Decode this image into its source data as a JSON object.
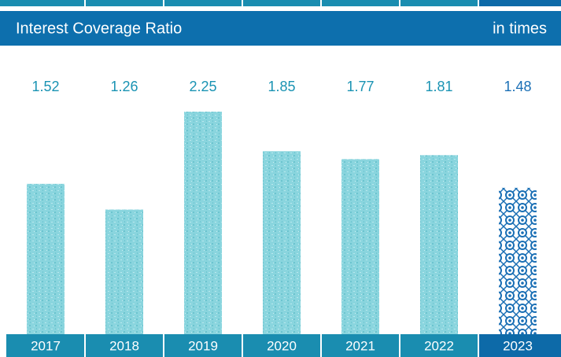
{
  "chart_data": {
    "type": "bar",
    "title": "Interest Coverage Ratio",
    "unit_label": "in times",
    "categories": [
      "2017",
      "2018",
      "2019",
      "2020",
      "2021",
      "2022",
      "2023"
    ],
    "values": [
      1.52,
      1.26,
      2.25,
      1.85,
      1.77,
      1.81,
      1.48
    ],
    "color": "#86d3dc",
    "highlight_color": "#1a6fb5"
  }
}
